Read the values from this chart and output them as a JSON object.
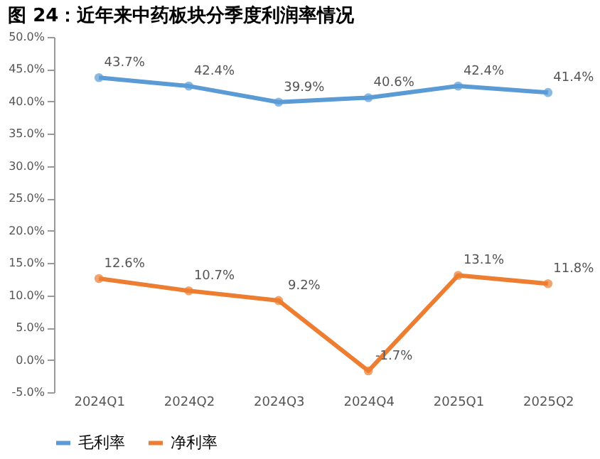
{
  "chart_data": {
    "type": "line",
    "title": "图 24：近年来中药板块分季度利润率情况",
    "categories": [
      "2024Q1",
      "2024Q2",
      "2024Q3",
      "2024Q4",
      "2025Q1",
      "2025Q2"
    ],
    "series": [
      {
        "name": "毛利率",
        "color": "#5b9bd5",
        "values": [
          43.7,
          42.4,
          39.9,
          40.6,
          42.4,
          41.4
        ],
        "value_labels": [
          "43.7%",
          "42.4%",
          "39.9%",
          "40.6%",
          "42.4%",
          "41.4%"
        ]
      },
      {
        "name": "净利率",
        "color": "#ed7d31",
        "values": [
          12.6,
          10.7,
          9.2,
          -1.7,
          13.1,
          11.8
        ],
        "value_labels": [
          "12.6%",
          "10.7%",
          "9.2%",
          "-1.7%",
          "13.1%",
          "11.8%"
        ]
      }
    ],
    "ylim": [
      -5,
      50
    ],
    "yticks": [
      {
        "value": -5,
        "label": "-5.0%"
      },
      {
        "value": 0,
        "label": "0.0%"
      },
      {
        "value": 5,
        "label": "5.0%"
      },
      {
        "value": 10,
        "label": "10.0%"
      },
      {
        "value": 15,
        "label": "15.0%"
      },
      {
        "value": 20,
        "label": "20.0%"
      },
      {
        "value": 25,
        "label": "25.0%"
      },
      {
        "value": 30,
        "label": "30.0%"
      },
      {
        "value": 35,
        "label": "35.0%"
      },
      {
        "value": 40,
        "label": "40.0%"
      },
      {
        "value": 45,
        "label": "45.0%"
      },
      {
        "value": 50,
        "label": "50.0%"
      }
    ],
    "grid": false,
    "legend": "bottom",
    "marker": "circle",
    "line_style": "solid"
  }
}
